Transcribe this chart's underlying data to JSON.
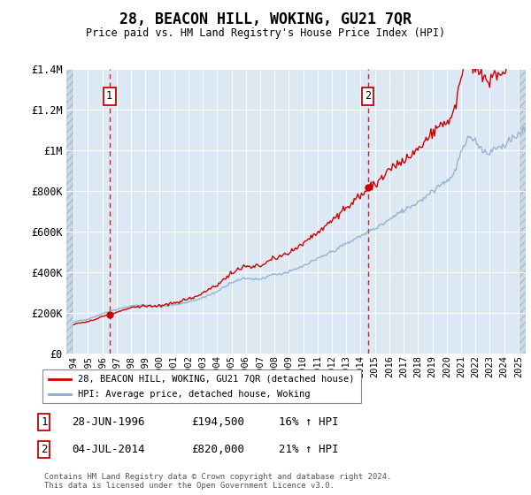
{
  "title": "28, BEACON HILL, WOKING, GU21 7QR",
  "subtitle": "Price paid vs. HM Land Registry's House Price Index (HPI)",
  "ylim": [
    0,
    1400000
  ],
  "xlim_start": 1993.5,
  "xlim_end": 2025.5,
  "background_color": "#dce9f5",
  "grid_color": "#ffffff",
  "line_color_red": "#cc0000",
  "line_color_blue": "#88aacc",
  "marker_color": "#cc0000",
  "transaction1_year": 1996.5,
  "transaction1_price": 194500,
  "transaction2_year": 2014.5,
  "transaction2_price": 820000,
  "legend_label_red": "28, BEACON HILL, WOKING, GU21 7QR (detached house)",
  "legend_label_blue": "HPI: Average price, detached house, Woking",
  "annotation1_label": "1",
  "annotation1_date": "28-JUN-1996",
  "annotation1_price": "£194,500",
  "annotation1_hpi": "16% ↑ HPI",
  "annotation2_label": "2",
  "annotation2_date": "04-JUL-2014",
  "annotation2_price": "£820,000",
  "annotation2_hpi": "21% ↑ HPI",
  "footer": "Contains HM Land Registry data © Crown copyright and database right 2024.\nThis data is licensed under the Open Government Licence v3.0.",
  "yticks": [
    0,
    200000,
    400000,
    600000,
    800000,
    1000000,
    1200000,
    1400000
  ],
  "ytick_labels": [
    "£0",
    "£200K",
    "£400K",
    "£600K",
    "£800K",
    "£1M",
    "£1.2M",
    "£1.4M"
  ],
  "xtick_years": [
    1994,
    1995,
    1996,
    1997,
    1998,
    1999,
    2000,
    2001,
    2002,
    2003,
    2004,
    2005,
    2006,
    2007,
    2008,
    2009,
    2010,
    2011,
    2012,
    2013,
    2014,
    2015,
    2016,
    2017,
    2018,
    2019,
    2020,
    2021,
    2022,
    2023,
    2024,
    2025
  ]
}
